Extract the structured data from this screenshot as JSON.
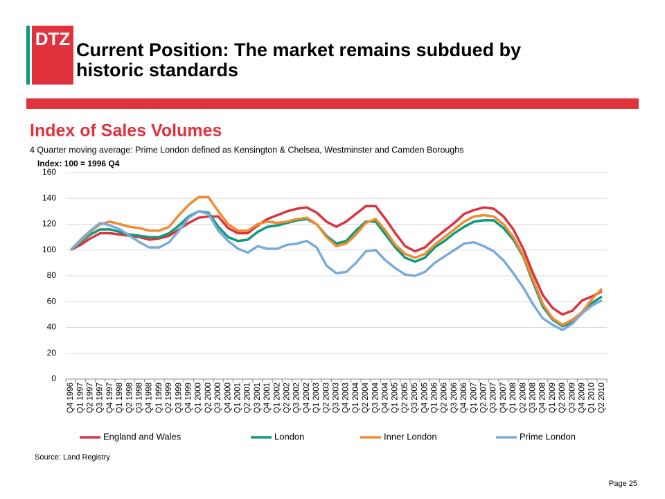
{
  "header": {
    "logo": "DTZ",
    "title_lines": [
      "Current Position:  The market remains subdued by",
      "historic standards"
    ]
  },
  "footer": {
    "source": "Source: Land Registry",
    "page": "Page 25"
  },
  "chart_data": {
    "type": "line",
    "title": "Index of Sales Volumes",
    "subtitle": "4 Quarter moving average: Prime London defined as Kensington & Chelsea, Westminster and Camden Boroughs",
    "y_label": "Index: 100 = 1996 Q4",
    "categories": [
      "Q4 1996",
      "Q1 1997",
      "Q2 1997",
      "Q3 1997",
      "Q4 1997",
      "Q1 1998",
      "Q2 1998",
      "Q3 1998",
      "Q4 1998",
      "Q1 1999",
      "Q2 1999",
      "Q3 1999",
      "Q4 1999",
      "Q1 2000",
      "Q2 2000",
      "Q3 2000",
      "Q4 2000",
      "Q1 2001",
      "Q2 2001",
      "Q3 2001",
      "Q4 2001",
      "Q1 2002",
      "Q2 2002",
      "Q3 2002",
      "Q4 2002",
      "Q1 2003",
      "Q2 2003",
      "Q3 2003",
      "Q4 2003",
      "Q1 2004",
      "Q2 2004",
      "Q3 2004",
      "Q4 2004",
      "Q1 2005",
      "Q2 2005",
      "Q3 2005",
      "Q4 2005",
      "Q1 2006",
      "Q2 2006",
      "Q3 2006",
      "Q4 2006",
      "Q1 2007",
      "Q2 2007",
      "Q3 2007",
      "Q4 2007",
      "Q1 2008",
      "Q2 2008",
      "Q3 2008",
      "Q4 2008",
      "Q1 2009",
      "Q2 2009",
      "Q3 2009",
      "Q4 2009",
      "Q1 2010",
      "Q2 2010"
    ],
    "series": [
      {
        "name": "England and Wales",
        "color": "#d9343f",
        "values": [
          100,
          104,
          109,
          113,
          113,
          112,
          111,
          110,
          108,
          109,
          111,
          116,
          121,
          125,
          126,
          126,
          117,
          113,
          113,
          119,
          124,
          127,
          130,
          132,
          133,
          129,
          122,
          118,
          122,
          128,
          134,
          134,
          124,
          113,
          103,
          99,
          102,
          109,
          115,
          121,
          128,
          131,
          133,
          132,
          126,
          116,
          101,
          82,
          65,
          55,
          50,
          53,
          61,
          64,
          68
        ]
      },
      {
        "name": "London",
        "color": "#0e9a7a",
        "values": [
          100,
          106,
          112,
          116,
          116,
          114,
          112,
          111,
          110,
          110,
          113,
          119,
          126,
          130,
          129,
          118,
          110,
          107,
          108,
          114,
          118,
          119,
          121,
          123,
          124,
          120,
          111,
          105,
          107,
          115,
          122,
          122,
          112,
          102,
          94,
          91,
          94,
          102,
          107,
          113,
          118,
          122,
          123,
          123,
          117,
          108,
          95,
          75,
          56,
          46,
          41,
          44,
          51,
          59,
          64
        ]
      },
      {
        "name": "Inner London",
        "color": "#f28a30",
        "values": [
          100,
          107,
          114,
          120,
          122,
          120,
          118,
          117,
          115,
          115,
          118,
          127,
          135,
          141,
          141,
          130,
          120,
          115,
          115,
          120,
          122,
          121,
          122,
          124,
          125,
          120,
          110,
          103,
          105,
          112,
          121,
          124,
          115,
          104,
          97,
          94,
          97,
          104,
          110,
          116,
          122,
          126,
          127,
          126,
          120,
          110,
          96,
          77,
          58,
          47,
          42,
          46,
          52,
          62,
          70
        ]
      },
      {
        "name": "Prime London",
        "color": "#7aaadc",
        "values": [
          100,
          108,
          115,
          121,
          119,
          116,
          111,
          106,
          102,
          102,
          106,
          115,
          125,
          130,
          128,
          115,
          107,
          101,
          98,
          103,
          101,
          101,
          104,
          105,
          107,
          102,
          88,
          82,
          83,
          90,
          99,
          100,
          92,
          86,
          81,
          80,
          83,
          90,
          95,
          100,
          105,
          106,
          103,
          99,
          92,
          82,
          71,
          58,
          47,
          42,
          38,
          43,
          51,
          57,
          61
        ]
      }
    ],
    "ylim": [
      0,
      160
    ],
    "yticks": [
      0,
      20,
      40,
      60,
      80,
      100,
      120,
      140,
      160
    ],
    "grid": true,
    "legend": "bottom"
  }
}
